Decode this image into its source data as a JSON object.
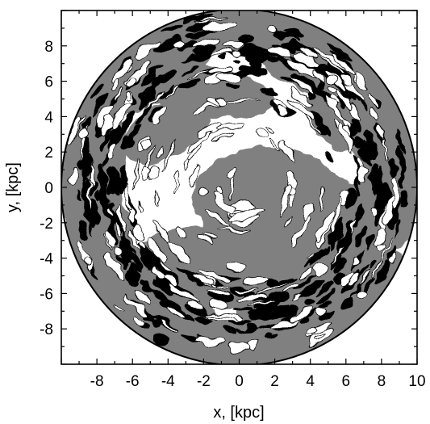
{
  "chart_data": {
    "type": "heatmap",
    "title": "",
    "xlabel": "x, [kpc]",
    "ylabel": "y, [kpc]",
    "xlim": [
      -10,
      10
    ],
    "ylim": [
      -10,
      10
    ],
    "x_ticks": [
      -8,
      -6,
      -4,
      -2,
      0,
      2,
      4,
      6,
      8,
      10
    ],
    "y_ticks": [
      -8,
      -6,
      -4,
      -2,
      0,
      2,
      4,
      6,
      8
    ],
    "disk_radius": 10,
    "grid": false,
    "levels": [
      "white",
      "gray",
      "black"
    ],
    "colors": {
      "low": "#ffffff",
      "mid": "#808080",
      "high": "#000000",
      "frame": "#000000"
    }
  }
}
